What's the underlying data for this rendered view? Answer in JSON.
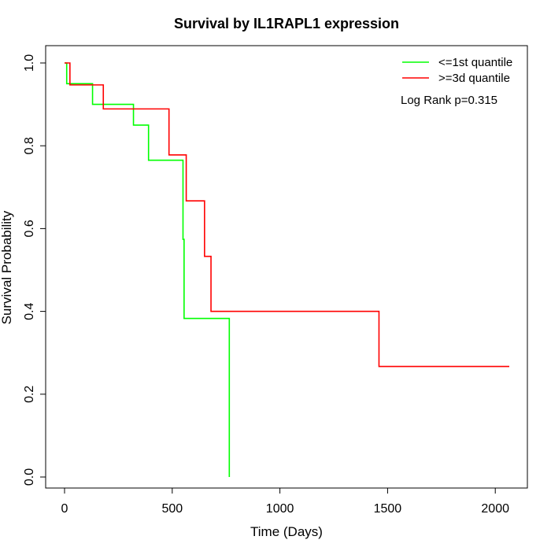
{
  "chart_data": {
    "type": "line",
    "title": "Survival by IL1RAPL1 expression",
    "xlabel": "Time (Days)",
    "ylabel": "Survival Probability",
    "xlim": [
      0,
      2070
    ],
    "ylim": [
      0,
      1
    ],
    "x_ticks": [
      0,
      500,
      1000,
      1500,
      2000
    ],
    "y_ticks": [
      0.0,
      0.2,
      0.4,
      0.6,
      0.8,
      1.0
    ],
    "x_tick_labels": [
      "0",
      "500",
      "1000",
      "1500",
      "2000"
    ],
    "y_tick_labels": [
      "0.0",
      "0.2",
      "0.4",
      "0.6",
      "0.8",
      "1.0"
    ],
    "grid": false,
    "legend_position": "top-right",
    "annotation": "Log Rank p=0.315",
    "series": [
      {
        "name": "<=1st quantile",
        "color": "#00ff00",
        "step": true,
        "points": [
          [
            0,
            1.0
          ],
          [
            10,
            0.95
          ],
          [
            130,
            0.9
          ],
          [
            320,
            0.85
          ],
          [
            390,
            0.765
          ],
          [
            550,
            0.574
          ],
          [
            555,
            0.383
          ],
          [
            765,
            0.0
          ]
        ]
      },
      {
        "name": ">=3d quantile",
        "color": "#ff0000",
        "step": true,
        "points": [
          [
            0,
            1.0
          ],
          [
            25,
            0.947
          ],
          [
            180,
            0.889
          ],
          [
            485,
            0.778
          ],
          [
            565,
            0.667
          ],
          [
            650,
            0.533
          ],
          [
            680,
            0.4
          ],
          [
            1460,
            0.267
          ],
          [
            2065,
            0.267
          ]
        ]
      }
    ]
  }
}
